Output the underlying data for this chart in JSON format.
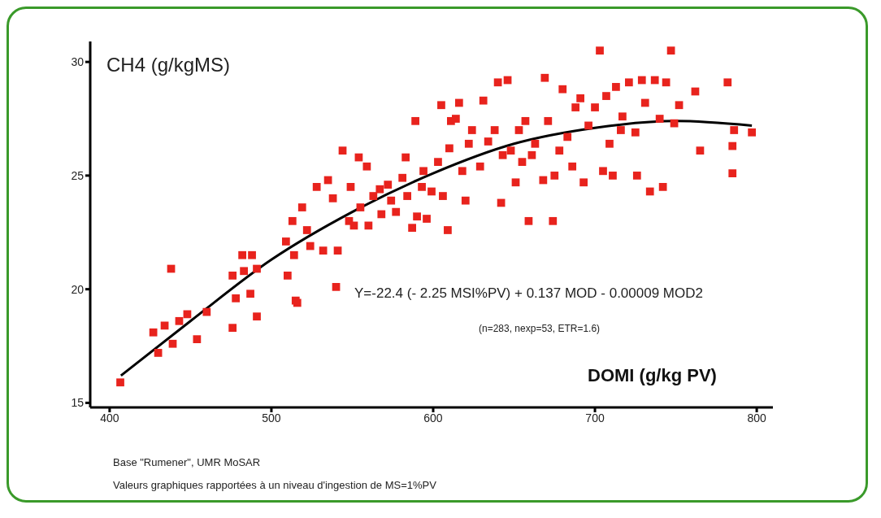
{
  "chart_data": {
    "type": "scatter",
    "xlabel": "DOMI (g/kg PV)",
    "ylabel": "CH4 (g/kgMS)",
    "xlim": [
      388,
      810
    ],
    "ylim": [
      14.8,
      30.9
    ],
    "xticks": [
      400,
      500,
      600,
      700,
      800
    ],
    "yticks": [
      15,
      20,
      25,
      30
    ],
    "grid": false,
    "legend": false,
    "series": [
      {
        "color": "#e8231d",
        "marker": "square",
        "x": [
          406.6,
          427,
          430,
          434,
          438,
          439,
          443,
          448,
          454,
          460,
          476,
          476,
          478,
          482,
          483,
          487,
          488,
          491,
          491,
          510,
          515,
          516,
          514,
          509,
          513,
          522,
          524,
          519,
          528,
          532,
          535,
          538,
          541,
          540,
          544,
          549,
          548,
          551,
          554,
          555,
          559,
          560,
          563,
          567,
          568,
          572,
          574,
          577,
          581,
          583,
          584,
          587,
          589,
          590,
          593,
          594,
          596,
          599,
          603,
          605,
          606,
          609,
          610,
          611,
          614,
          616,
          618,
          620,
          622,
          624,
          629,
          631,
          634,
          638,
          640,
          642,
          643,
          646,
          648,
          651,
          653,
          655,
          657,
          659,
          661,
          663,
          668,
          669,
          671,
          674,
          675,
          678,
          680,
          683,
          686,
          688,
          691,
          693,
          696,
          700,
          703,
          705,
          707,
          709,
          713,
          716,
          717,
          721,
          726,
          729,
          731,
          734,
          737,
          740,
          742,
          744,
          747,
          749,
          752,
          762,
          765,
          782,
          786,
          785,
          785,
          797,
          725,
          711
        ],
        "values": [
          15.9,
          18.1,
          17.2,
          18.4,
          20.9,
          17.6,
          18.6,
          18.9,
          17.8,
          19.0,
          18.3,
          20.6,
          19.6,
          21.5,
          20.8,
          19.8,
          21.5,
          18.8,
          20.9,
          20.6,
          19.5,
          19.4,
          21.5,
          22.1,
          23.0,
          22.6,
          21.9,
          23.6,
          24.5,
          21.7,
          24.8,
          24.0,
          21.7,
          20.1,
          26.1,
          24.5,
          23.0,
          22.8,
          25.8,
          23.6,
          25.4,
          22.8,
          24.1,
          24.4,
          23.3,
          24.6,
          23.9,
          23.4,
          24.9,
          25.8,
          24.1,
          22.7,
          27.4,
          23.2,
          24.5,
          25.2,
          23.1,
          24.3,
          25.6,
          28.1,
          24.1,
          22.6,
          26.2,
          27.4,
          27.5,
          28.2,
          25.2,
          23.9,
          26.4,
          27.0,
          25.4,
          28.3,
          26.5,
          27.0,
          29.1,
          23.8,
          25.9,
          29.2,
          26.1,
          24.7,
          27.0,
          25.6,
          27.4,
          23.0,
          25.9,
          26.4,
          24.8,
          29.3,
          27.4,
          23.0,
          25.0,
          26.1,
          28.8,
          26.7,
          25.4,
          28.0,
          28.4,
          24.7,
          27.2,
          28.0,
          30.5,
          25.2,
          28.5,
          26.4,
          28.9,
          27.0,
          27.6,
          29.1,
          25.0,
          29.2,
          28.2,
          24.3,
          29.2,
          27.5,
          24.5,
          29.1,
          30.5,
          27.3,
          28.1,
          28.7,
          26.1,
          29.1,
          27.0,
          26.3,
          25.1,
          26.9,
          26.9,
          25.0
        ]
      },
      {
        "type": "line",
        "marker": "none",
        "color": "#000000",
        "x": [
          407,
          450,
          500,
          550,
          600,
          650,
          700,
          750,
          797
        ],
        "values": [
          16.2,
          18.6,
          21.3,
          23.4,
          25.1,
          26.4,
          27.1,
          27.4,
          27.2
        ]
      }
    ],
    "annotations": [
      "Y=-22.4 (- 2.25 MSI%PV) + 0.137 MOD - 0.00009 MOD2",
      "(n=283, nexp=53, ETR=1.6)",
      "Base \"Rumener\", UMR MoSAR",
      "Valeurs graphiques rapportées à un niveau d'ingestion de MS=1%PV"
    ]
  }
}
